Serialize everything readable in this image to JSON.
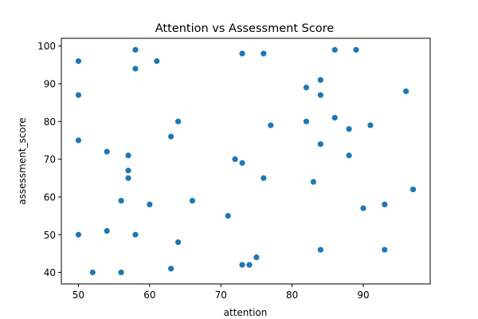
{
  "chart_data": {
    "type": "scatter",
    "title": "Attention vs Assessment Score",
    "xlabel": "attention",
    "ylabel": "assessment_score",
    "xlim": [
      47.6,
      99.4
    ],
    "ylim": [
      36.95,
      102.05
    ],
    "xticks": [
      50,
      60,
      70,
      80,
      90
    ],
    "yticks": [
      40,
      50,
      60,
      70,
      80,
      90,
      100
    ],
    "grid": false,
    "color": "#1f77b4",
    "series": [
      {
        "x": [
          50,
          50,
          50,
          50,
          52,
          54,
          54,
          56,
          56,
          57,
          57,
          57,
          58,
          58,
          58,
          60,
          61,
          63,
          63,
          64,
          64,
          66,
          71,
          72,
          73,
          73,
          73,
          74,
          75,
          76,
          76,
          77,
          82,
          82,
          83,
          84,
          84,
          84,
          84,
          86,
          86,
          88,
          88,
          89,
          90,
          91,
          93,
          93,
          96,
          97
        ],
        "y": [
          96,
          87,
          75,
          50,
          40,
          72,
          51,
          59,
          40,
          71,
          67,
          65,
          99,
          94,
          50,
          58,
          96,
          76,
          41,
          80,
          48,
          59,
          55,
          70,
          98,
          69,
          42,
          42,
          44,
          98,
          65,
          79,
          89,
          80,
          64,
          91,
          87,
          74,
          46,
          99,
          81,
          78,
          71,
          99,
          57,
          79,
          58,
          46,
          88,
          62
        ]
      }
    ]
  }
}
